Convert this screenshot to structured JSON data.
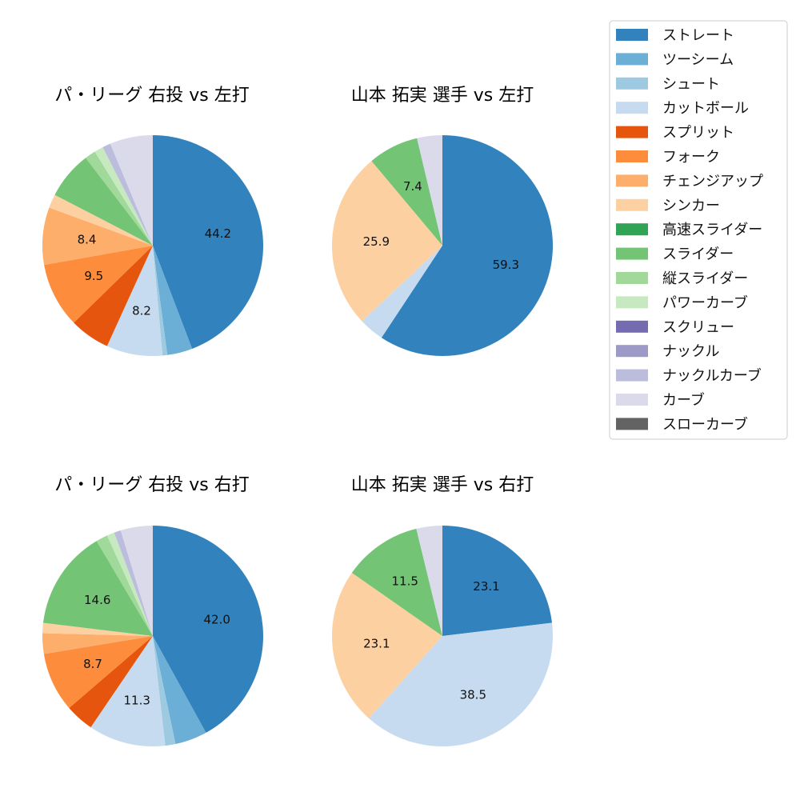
{
  "colors": {
    "ストレート": "#3182bd",
    "ツーシーム": "#6baed6",
    "シュート": "#9ecae1",
    "カットボール": "#c6dbef",
    "スプリット": "#e6550d",
    "フォーク": "#fd8d3c",
    "チェンジアップ": "#fdae6b",
    "シンカー": "#fdd0a2",
    "高速スライダー": "#31a354",
    "スライダー": "#74c476",
    "縦スライダー": "#a1d99b",
    "パワーカーブ": "#c7e9c0",
    "スクリュー": "#756bb1",
    "ナックル": "#9e9ac8",
    "ナックルカーブ": "#bcbddc",
    "カーブ": "#dadaeb",
    "スローカーブ": "#636363"
  },
  "legend": {
    "entries": [
      "ストレート",
      "ツーシーム",
      "シュート",
      "カットボール",
      "スプリット",
      "フォーク",
      "チェンジアップ",
      "シンカー",
      "高速スライダー",
      "スライダー",
      "縦スライダー",
      "パワーカーブ",
      "スクリュー",
      "ナックル",
      "ナックルカーブ",
      "カーブ",
      "スローカーブ"
    ]
  },
  "chart_data": [
    {
      "type": "pie",
      "title": "パ・リーグ 右投 vs 左打",
      "slices": [
        {
          "label": "ストレート",
          "value": 44.2,
          "shown": "44.2"
        },
        {
          "label": "ツーシーム",
          "value": 3.7,
          "shown": ""
        },
        {
          "label": "シュート",
          "value": 0.7,
          "shown": ""
        },
        {
          "label": "カットボール",
          "value": 8.2,
          "shown": "8.2"
        },
        {
          "label": "スプリット",
          "value": 5.9,
          "shown": ""
        },
        {
          "label": "フォーク",
          "value": 9.5,
          "shown": "9.5"
        },
        {
          "label": "チェンジアップ",
          "value": 8.4,
          "shown": "8.4"
        },
        {
          "label": "シンカー",
          "value": 2.0,
          "shown": ""
        },
        {
          "label": "スライダー",
          "value": 7.0,
          "shown": ""
        },
        {
          "label": "縦スライダー",
          "value": 1.6,
          "shown": ""
        },
        {
          "label": "パワーカーブ",
          "value": 1.3,
          "shown": ""
        },
        {
          "label": "ナックルカーブ",
          "value": 1.2,
          "shown": ""
        },
        {
          "label": "カーブ",
          "value": 6.3,
          "shown": ""
        }
      ]
    },
    {
      "type": "pie",
      "title": "山本 拓実 選手 vs 左打",
      "slices": [
        {
          "label": "ストレート",
          "value": 59.3,
          "shown": "59.3"
        },
        {
          "label": "カットボール",
          "value": 3.7,
          "shown": ""
        },
        {
          "label": "シンカー",
          "value": 25.9,
          "shown": "25.9"
        },
        {
          "label": "スライダー",
          "value": 7.4,
          "shown": "7.4"
        },
        {
          "label": "カーブ",
          "value": 3.7,
          "shown": ""
        }
      ]
    },
    {
      "type": "pie",
      "title": "パ・リーグ 右投 vs 右打",
      "slices": [
        {
          "label": "ストレート",
          "value": 42.0,
          "shown": "42.0"
        },
        {
          "label": "ツーシーム",
          "value": 4.7,
          "shown": ""
        },
        {
          "label": "シュート",
          "value": 1.5,
          "shown": ""
        },
        {
          "label": "カットボール",
          "value": 11.3,
          "shown": "11.3"
        },
        {
          "label": "スプリット",
          "value": 4.2,
          "shown": ""
        },
        {
          "label": "フォーク",
          "value": 8.7,
          "shown": "8.7"
        },
        {
          "label": "チェンジアップ",
          "value": 3.0,
          "shown": ""
        },
        {
          "label": "シンカー",
          "value": 1.5,
          "shown": ""
        },
        {
          "label": "スライダー",
          "value": 14.6,
          "shown": "14.6"
        },
        {
          "label": "縦スライダー",
          "value": 1.7,
          "shown": ""
        },
        {
          "label": "パワーカーブ",
          "value": 1.1,
          "shown": ""
        },
        {
          "label": "ナックルカーブ",
          "value": 1.0,
          "shown": ""
        },
        {
          "label": "カーブ",
          "value": 4.7,
          "shown": ""
        }
      ]
    },
    {
      "type": "pie",
      "title": "山本 拓実 選手 vs 右打",
      "slices": [
        {
          "label": "ストレート",
          "value": 23.1,
          "shown": "23.1"
        },
        {
          "label": "カットボール",
          "value": 38.5,
          "shown": "38.5"
        },
        {
          "label": "シンカー",
          "value": 23.1,
          "shown": "23.1"
        },
        {
          "label": "スライダー",
          "value": 11.5,
          "shown": "11.5"
        },
        {
          "label": "カーブ",
          "value": 3.8,
          "shown": ""
        }
      ]
    }
  ]
}
